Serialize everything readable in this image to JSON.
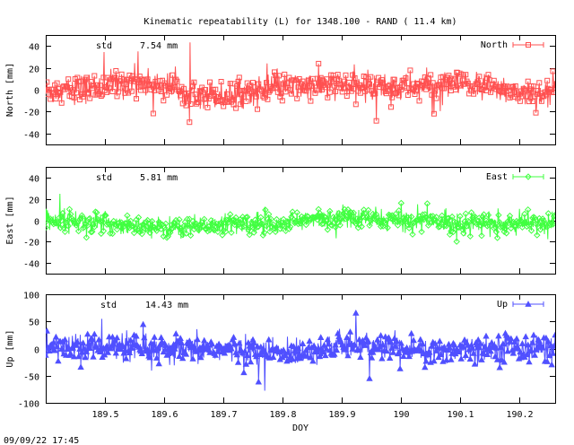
{
  "title": "Kinematic repeatability (L) for 1348.100 - RAND  ( 11.4 km)",
  "footer_timestamp": "09/09/22 17:45",
  "chart_data": [
    {
      "type": "scatter",
      "series": [
        {
          "name": "North",
          "color": "#ff5050",
          "marker": "square"
        }
      ],
      "ylabel": "North [mm]",
      "ylim": [
        -50,
        50
      ],
      "yticks": [
        40,
        20,
        0,
        -20,
        -40
      ],
      "xlim": [
        189.4,
        190.26
      ],
      "stat_label": "std",
      "stat_value": "7.54 mm",
      "legend": "North",
      "noise_std": 7.5,
      "baseline": [
        [
          189.4,
          -2
        ],
        [
          189.5,
          3
        ],
        [
          189.55,
          8
        ],
        [
          189.62,
          2
        ],
        [
          189.7,
          -6
        ],
        [
          189.78,
          1
        ],
        [
          189.9,
          4
        ],
        [
          190.0,
          2
        ],
        [
          190.1,
          5
        ],
        [
          190.2,
          -2
        ],
        [
          190.26,
          -4
        ]
      ]
    },
    {
      "type": "scatter",
      "series": [
        {
          "name": "East",
          "color": "#40ff40",
          "marker": "diamond"
        }
      ],
      "ylabel": "East [mm]",
      "ylim": [
        -50,
        50
      ],
      "yticks": [
        40,
        20,
        0,
        -20,
        -40
      ],
      "xlim": [
        189.4,
        190.26
      ],
      "stat_label": "std",
      "stat_value": "5.81 mm",
      "legend": "East",
      "noise_std": 5.8,
      "baseline": [
        [
          189.4,
          2
        ],
        [
          189.5,
          -3
        ],
        [
          189.6,
          -7
        ],
        [
          189.7,
          -4
        ],
        [
          189.8,
          -2
        ],
        [
          189.9,
          2
        ],
        [
          190.0,
          0
        ],
        [
          190.1,
          -2
        ],
        [
          190.2,
          -4
        ],
        [
          190.26,
          -1
        ]
      ]
    },
    {
      "type": "scatter",
      "series": [
        {
          "name": "Up",
          "color": "#5050ff",
          "marker": "triangle"
        }
      ],
      "ylabel": "Up [mm]",
      "ylim": [
        -100,
        100
      ],
      "yticks": [
        100,
        50,
        0,
        -50,
        -100
      ],
      "xlim": [
        189.4,
        190.26
      ],
      "xticks": [
        189.5,
        189.6,
        189.7,
        189.8,
        189.9,
        190,
        190.1,
        190.2
      ],
      "xlabel": "DOY",
      "stat_label": "std",
      "stat_value": "14.43 mm",
      "legend": "Up",
      "noise_std": 14.4,
      "baseline": [
        [
          189.4,
          2
        ],
        [
          189.5,
          4
        ],
        [
          189.6,
          -6
        ],
        [
          189.7,
          0
        ],
        [
          189.8,
          -10
        ],
        [
          189.9,
          5
        ],
        [
          190.0,
          2
        ],
        [
          190.05,
          -8
        ],
        [
          190.1,
          0
        ],
        [
          190.2,
          3
        ],
        [
          190.26,
          0
        ]
      ]
    }
  ]
}
